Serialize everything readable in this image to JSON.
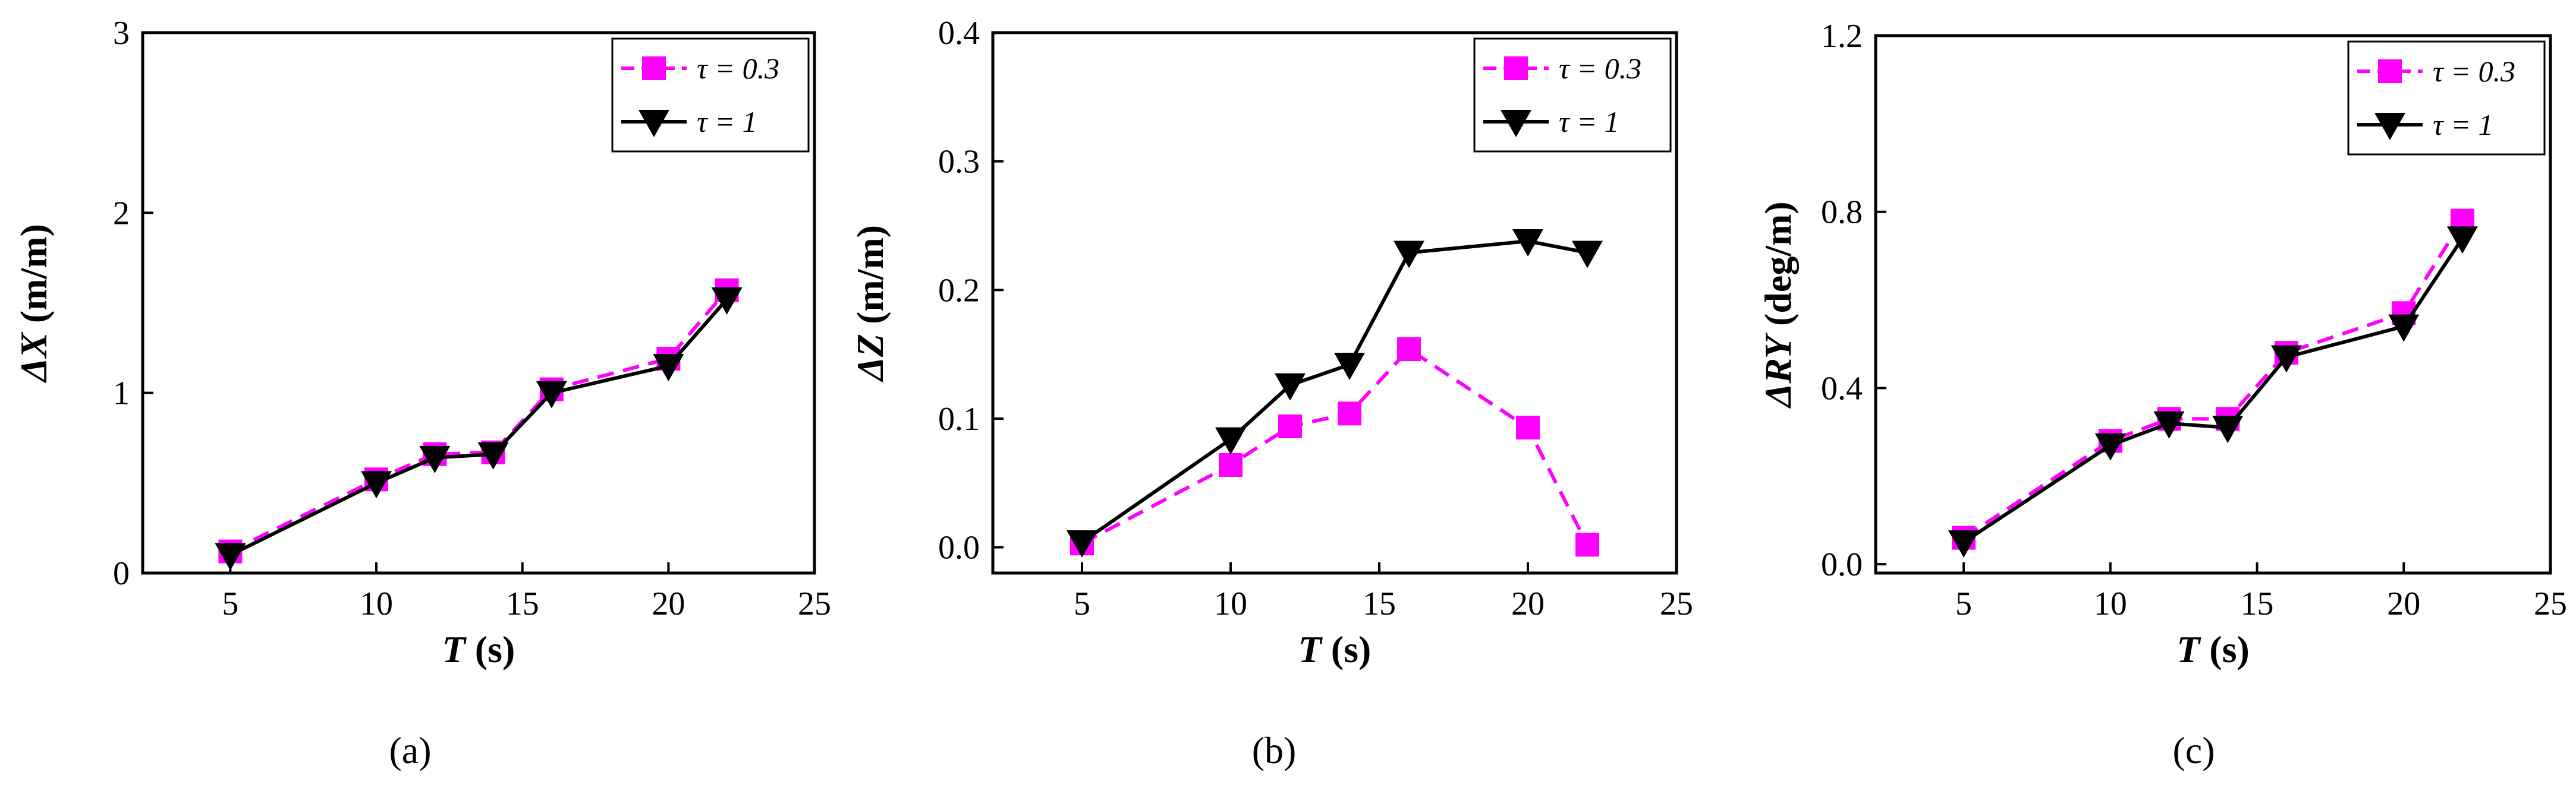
{
  "chart_data": [
    {
      "type": "line",
      "panel_label": "(a)",
      "xlabel": "T (s)",
      "xlabel_var": "T",
      "xlabel_unit": " (s)",
      "ylabel": "ΔX (m/m)",
      "ylabel_var": "ΔX",
      "ylabel_unit": " (m/m)",
      "xlim": [
        2,
        25
      ],
      "ylim": [
        0,
        3
      ],
      "xticks": [
        "5",
        "10",
        "15",
        "20",
        "25"
      ],
      "yticks": [
        "0",
        "1",
        "2",
        "3"
      ],
      "xtick_values": [
        5,
        10,
        15,
        20,
        25
      ],
      "ytick_values": [
        0,
        1,
        2,
        3
      ],
      "legend_position": "top-right",
      "series": [
        {
          "name": "τ = 0.3",
          "color": "#ff00ff",
          "style": "dash",
          "marker": "square",
          "x": [
            5,
            10,
            12,
            14,
            16,
            20,
            22
          ],
          "values": [
            0.12,
            0.52,
            0.66,
            0.67,
            1.02,
            1.19,
            1.57
          ]
        },
        {
          "name": "τ = 1",
          "color": "#000000",
          "style": "solid",
          "marker": "triangle-down",
          "x": [
            5,
            10,
            12,
            14,
            16,
            20,
            22
          ],
          "values": [
            0.1,
            0.5,
            0.64,
            0.66,
            1.0,
            1.15,
            1.52
          ]
        }
      ]
    },
    {
      "type": "line",
      "panel_label": "(b)",
      "xlabel": "T (s)",
      "xlabel_var": "T",
      "xlabel_unit": " (s)",
      "ylabel": "ΔZ (m/m)",
      "ylabel_var": "ΔZ",
      "ylabel_unit": " (m/m)",
      "xlim": [
        2,
        25
      ],
      "ylim": [
        -0.02,
        0.4
      ],
      "xticks": [
        "5",
        "10",
        "15",
        "20",
        "25"
      ],
      "yticks": [
        "0.0",
        "0.1",
        "0.2",
        "0.3",
        "0.4"
      ],
      "xtick_values": [
        5,
        10,
        15,
        20,
        25
      ],
      "ytick_values": [
        0,
        0.1,
        0.2,
        0.3,
        0.4
      ],
      "legend_position": "top-right",
      "series": [
        {
          "name": "τ = 0.3",
          "color": "#ff00ff",
          "style": "dash",
          "marker": "square",
          "x": [
            5,
            10,
            12,
            14,
            16,
            20,
            22
          ],
          "values": [
            0.003,
            0.064,
            0.094,
            0.104,
            0.154,
            0.093,
            0.002
          ]
        },
        {
          "name": "τ = 1",
          "color": "#000000",
          "style": "solid",
          "marker": "triangle-down",
          "x": [
            5,
            10,
            12,
            14,
            16,
            20,
            22
          ],
          "values": [
            0.004,
            0.084,
            0.126,
            0.142,
            0.229,
            0.238,
            0.229
          ]
        }
      ]
    },
    {
      "type": "line",
      "panel_label": "(c)",
      "xlabel": "T (s)",
      "xlabel_var": "T",
      "xlabel_unit": " (s)",
      "ylabel": "ΔRY (deg/m)",
      "ylabel_var": "ΔRY",
      "ylabel_unit": " (deg/m)",
      "xlim": [
        2,
        25
      ],
      "ylim": [
        -0.02,
        1.2
      ],
      "xticks": [
        "5",
        "10",
        "15",
        "20",
        "25"
      ],
      "yticks": [
        "0.0",
        "0.4",
        "0.8",
        "1.2"
      ],
      "xtick_values": [
        5,
        10,
        15,
        20,
        25
      ],
      "ytick_values": [
        0,
        0.4,
        0.8,
        1.2
      ],
      "legend_position": "top-right",
      "series": [
        {
          "name": "τ = 0.3",
          "color": "#ff00ff",
          "style": "dash",
          "marker": "square",
          "x": [
            5,
            10,
            12,
            14,
            16,
            20,
            22
          ],
          "values": [
            0.06,
            0.28,
            0.33,
            0.33,
            0.48,
            0.57,
            0.78
          ]
        },
        {
          "name": "τ = 1",
          "color": "#000000",
          "style": "solid",
          "marker": "triangle-down",
          "x": [
            5,
            10,
            12,
            14,
            16,
            20,
            22
          ],
          "values": [
            0.05,
            0.27,
            0.32,
            0.31,
            0.47,
            0.54,
            0.74
          ]
        }
      ]
    }
  ]
}
